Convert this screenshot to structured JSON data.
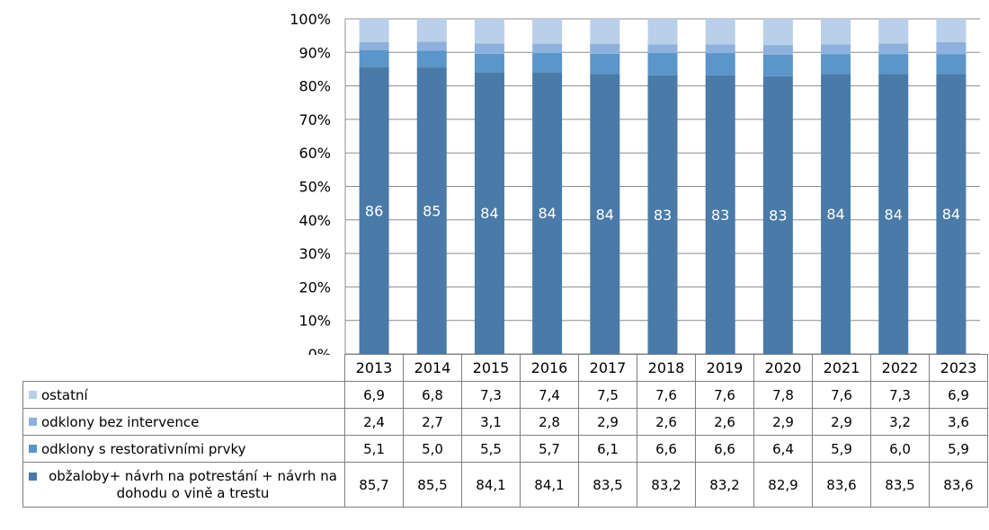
{
  "chart_data": {
    "type": "bar",
    "stacked": true,
    "normalized": true,
    "categories": [
      "2013",
      "2014",
      "2015",
      "2016",
      "2017",
      "2018",
      "2019",
      "2020",
      "2021",
      "2022",
      "2023"
    ],
    "series": [
      {
        "name": "obžaloby+ návrh na potrestání + návrh na dohodu o vině a trestu",
        "color": "#4a7aa7",
        "values": [
          "85,7",
          "85,5",
          "84,1",
          "84,1",
          "83,5",
          "83,2",
          "83,2",
          "82,9",
          "83,6",
          "83,5",
          "83,6"
        ],
        "data_labels": [
          "86",
          "85",
          "84",
          "84",
          "84",
          "83",
          "83",
          "83",
          "84",
          "84",
          "84"
        ]
      },
      {
        "name": "odklony s restorativními prvky",
        "color": "#5b95c9",
        "values": [
          "5,1",
          "5,0",
          "5,5",
          "5,7",
          "6,1",
          "6,6",
          "6,6",
          "6,4",
          "5,9",
          "6,0",
          "5,9"
        ]
      },
      {
        "name": "odklony bez intervence",
        "color": "#8db1dc",
        "values": [
          "2,4",
          "2,7",
          "3,1",
          "2,8",
          "2,9",
          "2,6",
          "2,6",
          "2,9",
          "2,9",
          "3,2",
          "3,6"
        ]
      },
      {
        "name": "ostatní",
        "color": "#b9cfea",
        "values": [
          "6,9",
          "6,8",
          "7,3",
          "7,4",
          "7,5",
          "7,6",
          "7,6",
          "7,8",
          "7,6",
          "7,3",
          "6,9"
        ]
      }
    ],
    "ylim": [
      0,
      100
    ],
    "yticks": [
      "0%",
      "10%",
      "20%",
      "30%",
      "40%",
      "50%",
      "60%",
      "70%",
      "80%",
      "90%",
      "100%"
    ],
    "grid": true,
    "legend": "data-table"
  }
}
